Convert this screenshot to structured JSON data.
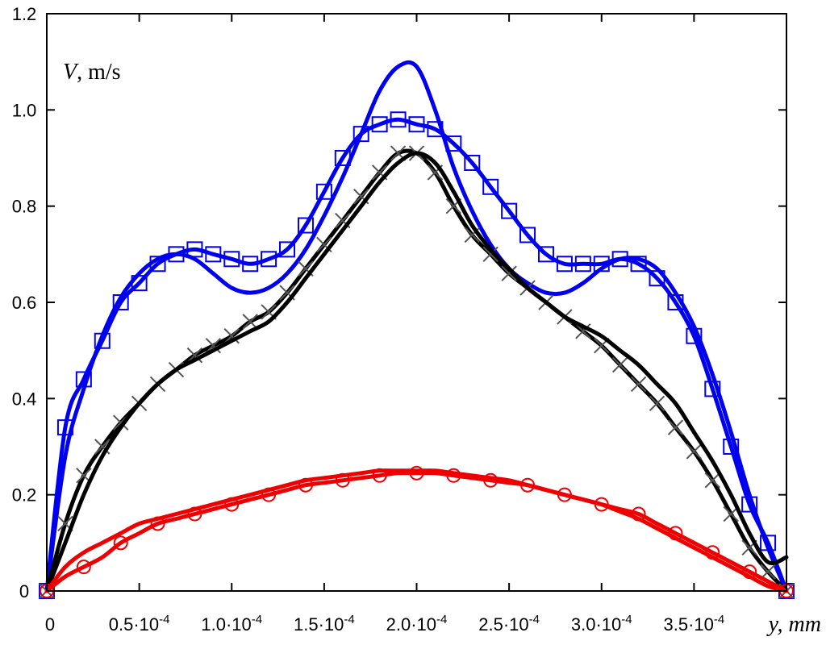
{
  "chart_data": {
    "type": "line",
    "ylabel_var": "V",
    "ylabel_unit": ", m/s",
    "xlabel": "y, mm",
    "xlim": [
      0,
      0.0004
    ],
    "ylim": [
      0,
      1.2
    ],
    "grid": false,
    "legend": "none",
    "xticks": [
      {
        "value": 0,
        "label": "0"
      },
      {
        "value": 5e-05,
        "label": "0.5·10-4"
      },
      {
        "value": 0.0001,
        "label": "1.0·10-4"
      },
      {
        "value": 0.00015,
        "label": "1.5·10-4"
      },
      {
        "value": 0.0002,
        "label": "2.0·10-4"
      },
      {
        "value": 0.00025,
        "label": "2.5·10-4"
      },
      {
        "value": 0.0003,
        "label": "3.0·10-4"
      },
      {
        "value": 0.00035,
        "label": "3.5·10-4"
      }
    ],
    "yticks": [
      {
        "value": 0,
        "label": "0"
      },
      {
        "value": 0.2,
        "label": "0.2"
      },
      {
        "value": 0.4,
        "label": "0.4"
      },
      {
        "value": 0.6,
        "label": "0.6"
      },
      {
        "value": 0.8,
        "label": "0.8"
      },
      {
        "value": 1.0,
        "label": "1.0"
      },
      {
        "value": 1.2,
        "label": "1.2"
      }
    ],
    "series": [
      {
        "color": "#0000ee",
        "marker": "square",
        "style": "line+markers",
        "x": [
          0,
          1e-05,
          2e-05,
          3e-05,
          4e-05,
          5e-05,
          6e-05,
          7e-05,
          8e-05,
          9e-05,
          0.0001,
          0.00011,
          0.00012,
          0.00013,
          0.00014,
          0.00015,
          0.00016,
          0.00017,
          0.00018,
          0.00019,
          0.0002,
          0.00021,
          0.00022,
          0.00023,
          0.00024,
          0.00025,
          0.00026,
          0.00027,
          0.00028,
          0.00029,
          0.0003,
          0.00031,
          0.00032,
          0.00033,
          0.00034,
          0.00035,
          0.00036,
          0.00037,
          0.00038,
          0.00039,
          0.0004
        ],
        "y": [
          0.0,
          0.34,
          0.44,
          0.52,
          0.6,
          0.64,
          0.68,
          0.7,
          0.71,
          0.7,
          0.69,
          0.68,
          0.69,
          0.71,
          0.76,
          0.83,
          0.9,
          0.95,
          0.97,
          0.98,
          0.97,
          0.96,
          0.93,
          0.89,
          0.84,
          0.79,
          0.74,
          0.7,
          0.68,
          0.68,
          0.68,
          0.69,
          0.68,
          0.65,
          0.6,
          0.53,
          0.42,
          0.3,
          0.18,
          0.1,
          0.0
        ]
      },
      {
        "color": "#0000ee",
        "marker": "none",
        "style": "line",
        "x": [
          0,
          1e-05,
          2e-05,
          3e-05,
          4e-05,
          5e-05,
          6e-05,
          7e-05,
          8e-05,
          9e-05,
          0.0001,
          0.00011,
          0.00012,
          0.00013,
          0.00014,
          0.00015,
          0.00016,
          0.00017,
          0.00018,
          0.00019,
          0.0002,
          0.00021,
          0.00022,
          0.00023,
          0.00024,
          0.00025,
          0.00026,
          0.00027,
          0.00028,
          0.00029,
          0.0003,
          0.00031,
          0.00032,
          0.00033,
          0.00034,
          0.00035,
          0.00036,
          0.00037,
          0.00038,
          0.00039,
          0.0004
        ],
        "y": [
          0.0,
          0.28,
          0.42,
          0.53,
          0.61,
          0.66,
          0.69,
          0.7,
          0.69,
          0.66,
          0.63,
          0.62,
          0.63,
          0.66,
          0.71,
          0.78,
          0.86,
          0.95,
          1.04,
          1.09,
          1.09,
          1.0,
          0.88,
          0.79,
          0.72,
          0.67,
          0.64,
          0.62,
          0.62,
          0.64,
          0.67,
          0.69,
          0.69,
          0.67,
          0.62,
          0.55,
          0.45,
          0.33,
          0.2,
          0.09,
          0.0
        ]
      },
      {
        "color": "#000000",
        "marker": "x",
        "style": "line+markers",
        "x": [
          0,
          1e-05,
          2e-05,
          3e-05,
          4e-05,
          5e-05,
          6e-05,
          7e-05,
          8e-05,
          9e-05,
          0.0001,
          0.00011,
          0.00012,
          0.00013,
          0.00014,
          0.00015,
          0.00016,
          0.00017,
          0.00018,
          0.00019,
          0.0002,
          0.00021,
          0.00022,
          0.00023,
          0.00024,
          0.00025,
          0.00026,
          0.00027,
          0.00028,
          0.00029,
          0.0003,
          0.00031,
          0.00032,
          0.00033,
          0.00034,
          0.00035,
          0.00036,
          0.00037,
          0.00038,
          0.00039,
          0.0004
        ],
        "y": [
          0.0,
          0.14,
          0.24,
          0.3,
          0.35,
          0.39,
          0.43,
          0.46,
          0.49,
          0.51,
          0.53,
          0.56,
          0.58,
          0.62,
          0.67,
          0.72,
          0.77,
          0.82,
          0.87,
          0.91,
          0.91,
          0.87,
          0.8,
          0.74,
          0.7,
          0.66,
          0.63,
          0.6,
          0.57,
          0.54,
          0.51,
          0.47,
          0.43,
          0.39,
          0.34,
          0.29,
          0.23,
          0.16,
          0.09,
          0.04,
          0.0
        ]
      },
      {
        "color": "#000000",
        "marker": "none",
        "style": "line",
        "x": [
          0,
          1e-05,
          2e-05,
          3e-05,
          4e-05,
          5e-05,
          6e-05,
          7e-05,
          8e-05,
          9e-05,
          0.0001,
          0.00011,
          0.00012,
          0.00013,
          0.00014,
          0.00015,
          0.00016,
          0.00017,
          0.00018,
          0.00019,
          0.0002,
          0.00021,
          0.00022,
          0.00023,
          0.00024,
          0.00025,
          0.00026,
          0.00027,
          0.00028,
          0.00029,
          0.0003,
          0.00031,
          0.00032,
          0.00033,
          0.00034,
          0.00035,
          0.00036,
          0.00037,
          0.00038,
          0.00039,
          0.0004
        ],
        "y": [
          0.0,
          0.1,
          0.2,
          0.28,
          0.34,
          0.39,
          0.43,
          0.46,
          0.48,
          0.5,
          0.52,
          0.54,
          0.56,
          0.6,
          0.65,
          0.7,
          0.75,
          0.8,
          0.85,
          0.89,
          0.91,
          0.89,
          0.83,
          0.76,
          0.71,
          0.67,
          0.63,
          0.6,
          0.57,
          0.55,
          0.53,
          0.5,
          0.47,
          0.43,
          0.39,
          0.33,
          0.27,
          0.2,
          0.12,
          0.06,
          0.07
        ]
      },
      {
        "color": "#ee0000",
        "marker": "circle",
        "style": "line+markers",
        "x": [
          0,
          1e-05,
          2e-05,
          3e-05,
          4e-05,
          5e-05,
          6e-05,
          7e-05,
          8e-05,
          9e-05,
          0.0001,
          0.00011,
          0.00012,
          0.00013,
          0.00014,
          0.00015,
          0.00016,
          0.00017,
          0.00018,
          0.00019,
          0.0002,
          0.00021,
          0.00022,
          0.00023,
          0.00024,
          0.00025,
          0.00026,
          0.00027,
          0.00028,
          0.00029,
          0.0003,
          0.00031,
          0.00032,
          0.00033,
          0.00034,
          0.00035,
          0.00036,
          0.00037,
          0.00038,
          0.00039,
          0.0004
        ],
        "y": [
          0.0,
          0.03,
          0.05,
          0.07,
          0.1,
          0.12,
          0.14,
          0.15,
          0.16,
          0.17,
          0.18,
          0.19,
          0.2,
          0.21,
          0.22,
          0.225,
          0.23,
          0.235,
          0.24,
          0.245,
          0.245,
          0.245,
          0.24,
          0.235,
          0.23,
          0.225,
          0.22,
          0.21,
          0.2,
          0.19,
          0.18,
          0.17,
          0.16,
          0.14,
          0.12,
          0.1,
          0.08,
          0.06,
          0.04,
          0.02,
          0.0
        ]
      },
      {
        "color": "#ee0000",
        "marker": "none",
        "style": "line",
        "x": [
          0,
          1e-05,
          2e-05,
          3e-05,
          4e-05,
          5e-05,
          6e-05,
          7e-05,
          8e-05,
          9e-05,
          0.0001,
          0.00011,
          0.00012,
          0.00013,
          0.00014,
          0.00015,
          0.00016,
          0.00017,
          0.00018,
          0.00019,
          0.0002,
          0.00021,
          0.00022,
          0.00023,
          0.00024,
          0.00025,
          0.00026,
          0.00027,
          0.00028,
          0.00029,
          0.0003,
          0.00031,
          0.00032,
          0.00033,
          0.00034,
          0.00035,
          0.00036,
          0.00037,
          0.00038,
          0.00039,
          0.0004
        ],
        "y": [
          0.0,
          0.05,
          0.08,
          0.1,
          0.12,
          0.14,
          0.15,
          0.16,
          0.17,
          0.18,
          0.19,
          0.2,
          0.21,
          0.22,
          0.23,
          0.235,
          0.24,
          0.245,
          0.25,
          0.25,
          0.25,
          0.25,
          0.245,
          0.24,
          0.235,
          0.23,
          0.22,
          0.21,
          0.2,
          0.19,
          0.18,
          0.165,
          0.15,
          0.13,
          0.11,
          0.09,
          0.07,
          0.05,
          0.03,
          0.01,
          0.0
        ]
      }
    ]
  }
}
